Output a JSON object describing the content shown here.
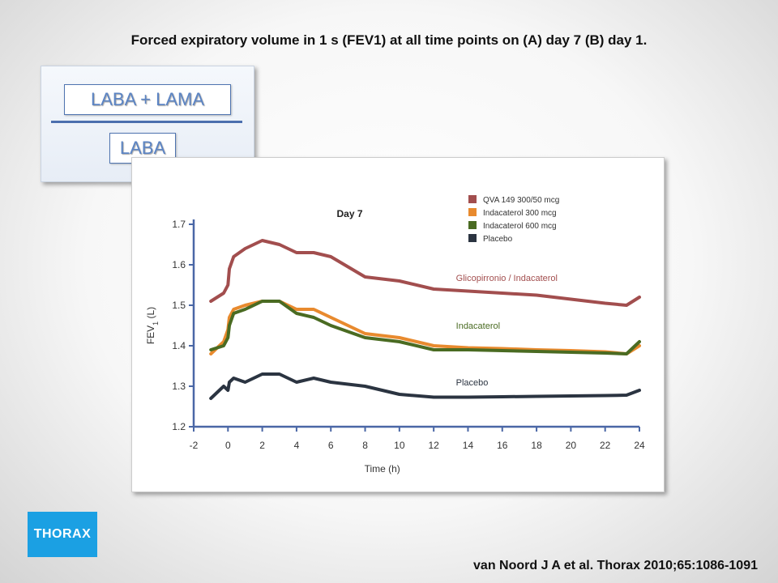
{
  "slide": {
    "title": "Forced expiratory volume in 1 s (FEV1) at all time points on (A) day 7 (B) day 1.",
    "citation": "van Noord J A et al. Thorax 2010;65:1086-1091",
    "logo_text": "THORAX"
  },
  "category_card": {
    "top_label": "LABA + LAMA",
    "bottom_label": "LABA"
  },
  "chart_data": {
    "type": "line",
    "title": "Day 7",
    "xlabel": "Time (h)",
    "ylabel": "FEV1 (L)",
    "ylabel_main": "FEV",
    "ylabel_sub": "1",
    "ylabel_unit": " (L)",
    "xlim": [
      -2,
      24
    ],
    "ylim": [
      1.2,
      1.7
    ],
    "xticks": [
      -2,
      0,
      2,
      4,
      6,
      8,
      10,
      12,
      14,
      16,
      18,
      20,
      22,
      24
    ],
    "yticks": [
      1.2,
      1.3,
      1.4,
      1.5,
      1.6,
      1.7
    ],
    "ytick_labels": [
      "1.2",
      "1.3",
      "1.4",
      "1.5",
      "1.6",
      "1.7"
    ],
    "grid": false,
    "legend_position": "top-right",
    "series": [
      {
        "name": "QVA 149 300/50 mcg",
        "color": "#a24e4e",
        "width": 4,
        "annotation": "Glicopirronio / Indacaterol",
        "points": [
          [
            -1,
            1.51
          ],
          [
            -0.25,
            1.53
          ],
          [
            0,
            1.55
          ],
          [
            0.08,
            1.59
          ],
          [
            0.33,
            1.62
          ],
          [
            1,
            1.64
          ],
          [
            2,
            1.66
          ],
          [
            3,
            1.65
          ],
          [
            4,
            1.63
          ],
          [
            5,
            1.63
          ],
          [
            6,
            1.62
          ],
          [
            8,
            1.57
          ],
          [
            10,
            1.56
          ],
          [
            12,
            1.54
          ],
          [
            14,
            1.535
          ],
          [
            16,
            1.53
          ],
          [
            18,
            1.525
          ],
          [
            20,
            1.515
          ],
          [
            22,
            1.505
          ],
          [
            23.25,
            1.5
          ],
          [
            24,
            1.52
          ]
        ]
      },
      {
        "name": "Indacaterol 300 mcg",
        "color": "#e88a2e",
        "width": 4,
        "annotation": "",
        "points": [
          [
            -1,
            1.38
          ],
          [
            -0.25,
            1.41
          ],
          [
            0,
            1.44
          ],
          [
            0.08,
            1.47
          ],
          [
            0.33,
            1.49
          ],
          [
            1,
            1.5
          ],
          [
            2,
            1.51
          ],
          [
            3,
            1.51
          ],
          [
            4,
            1.49
          ],
          [
            5,
            1.49
          ],
          [
            6,
            1.47
          ],
          [
            8,
            1.43
          ],
          [
            10,
            1.42
          ],
          [
            12,
            1.4
          ],
          [
            14,
            1.395
          ],
          [
            16,
            1.393
          ],
          [
            18,
            1.39
          ],
          [
            20,
            1.388
          ],
          [
            22,
            1.385
          ],
          [
            23.25,
            1.38
          ],
          [
            24,
            1.4
          ]
        ]
      },
      {
        "name": "Indacaterol 600 mcg",
        "color": "#4a6b22",
        "width": 4,
        "annotation": "Indacaterol",
        "points": [
          [
            -1,
            1.39
          ],
          [
            -0.25,
            1.4
          ],
          [
            0,
            1.42
          ],
          [
            0.08,
            1.45
          ],
          [
            0.33,
            1.48
          ],
          [
            1,
            1.49
          ],
          [
            2,
            1.51
          ],
          [
            3,
            1.51
          ],
          [
            4,
            1.48
          ],
          [
            5,
            1.47
          ],
          [
            6,
            1.45
          ],
          [
            8,
            1.42
          ],
          [
            10,
            1.41
          ],
          [
            12,
            1.39
          ],
          [
            14,
            1.39
          ],
          [
            16,
            1.388
          ],
          [
            18,
            1.386
          ],
          [
            20,
            1.384
          ],
          [
            22,
            1.382
          ],
          [
            23.25,
            1.38
          ],
          [
            24,
            1.41
          ]
        ]
      },
      {
        "name": "Placebo",
        "color": "#2b3441",
        "width": 4,
        "annotation": "Placebo",
        "points": [
          [
            -1,
            1.27
          ],
          [
            -0.25,
            1.3
          ],
          [
            0,
            1.29
          ],
          [
            0.08,
            1.31
          ],
          [
            0.33,
            1.32
          ],
          [
            1,
            1.31
          ],
          [
            2,
            1.33
          ],
          [
            3,
            1.33
          ],
          [
            4,
            1.31
          ],
          [
            5,
            1.32
          ],
          [
            6,
            1.31
          ],
          [
            8,
            1.3
          ],
          [
            10,
            1.28
          ],
          [
            12,
            1.273
          ],
          [
            14,
            1.273
          ],
          [
            16,
            1.274
          ],
          [
            18,
            1.275
          ],
          [
            20,
            1.276
          ],
          [
            22,
            1.277
          ],
          [
            23.25,
            1.278
          ],
          [
            24,
            1.29
          ]
        ]
      }
    ]
  }
}
